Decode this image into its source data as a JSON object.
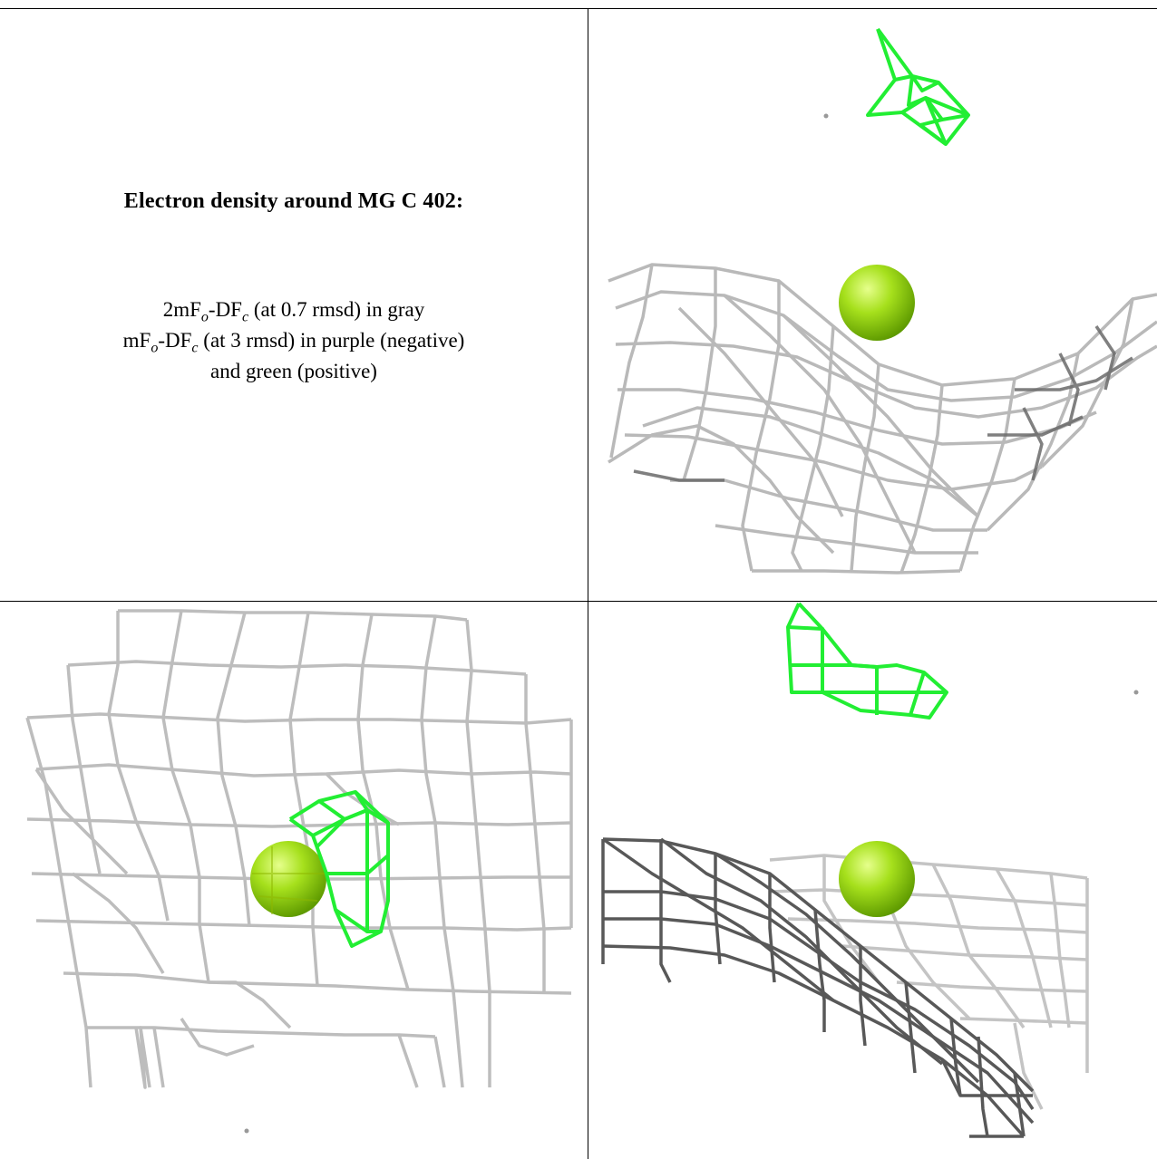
{
  "caption": {
    "title": "Electron density around MG C 402:",
    "line1": {
      "prefix": "2mF",
      "sub_o": "o",
      "mid": "-DF",
      "sub_c": "c",
      "suffix": " (at 0.7 rmsd) in gray"
    },
    "line2": {
      "prefix": "mF",
      "sub_o": "o",
      "mid": "-DF",
      "sub_c": "c",
      "suffix": " (at 3 rmsd) in purple (negative)"
    },
    "line3": "and green (positive)"
  },
  "colors": {
    "mesh_gray": "#b9b9b9",
    "mesh_dark": "#4a4a4a",
    "mesh_green": "#22ee33",
    "sphere_light": "#d8ff6a",
    "sphere_mid": "#a6e01c",
    "sphere_dark": "#5e9a00",
    "grid_line": "#000000"
  },
  "panels": [
    {
      "id": "view-1",
      "content": "caption"
    },
    {
      "id": "view-2",
      "atom": "mg-sphere"
    },
    {
      "id": "view-3",
      "atom": "mg-sphere"
    },
    {
      "id": "view-4",
      "atom": "mg-sphere"
    }
  ]
}
